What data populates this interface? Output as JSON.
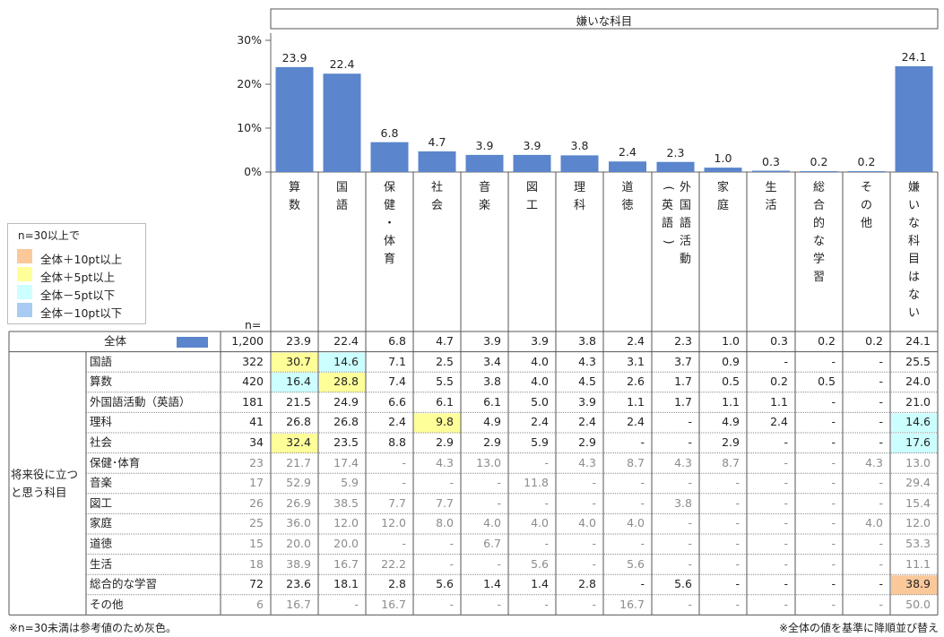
{
  "chart_data": {
    "type": "bar",
    "title": "嫌いな科目",
    "categories": [
      "算数",
      "国語",
      "保健・体育",
      "社会",
      "音楽",
      "図工",
      "理科",
      "道徳",
      "外国語活動（英語）",
      "家庭",
      "生活",
      "総合的な学習",
      "その他",
      "嫌いな科目はない"
    ],
    "header_labels": [
      "算数",
      "国語",
      "保健・体育",
      "社会",
      "音楽",
      "図工",
      "理科",
      "道徳",
      "外国語活動（英語）",
      "家庭",
      "生活",
      "総合的な学習",
      "その他",
      "嫌いな科目はない"
    ],
    "values": [
      23.9,
      22.4,
      6.8,
      4.7,
      3.9,
      3.9,
      3.8,
      2.4,
      2.3,
      1.0,
      0.3,
      0.2,
      0.2,
      24.1
    ],
    "value_labels": [
      "23.9",
      "22.4",
      "6.8",
      "4.7",
      "3.9",
      "3.9",
      "3.8",
      "2.4",
      "2.3",
      "1.0",
      "0.3",
      "0.2",
      "0.2",
      "24.1"
    ],
    "yticks": [
      "30%",
      "20%",
      "10%",
      "0%"
    ],
    "ylim": [
      0,
      30
    ],
    "bar_color": "#5b85cc",
    "n_label": "n=",
    "total_row": {
      "label": "全体",
      "n": "1,200",
      "values": [
        "23.9",
        "22.4",
        "6.8",
        "4.7",
        "3.9",
        "3.9",
        "3.8",
        "2.4",
        "2.3",
        "1.0",
        "0.3",
        "0.2",
        "0.2",
        "24.1"
      ]
    },
    "group_label": "将来役に立つと思う科目",
    "rows": [
      {
        "label": "国語",
        "n": "322",
        "gray": false,
        "values": [
          "30.7",
          "14.6",
          "7.1",
          "2.5",
          "3.4",
          "4.0",
          "4.3",
          "3.1",
          "3.7",
          "0.9",
          "-",
          "-",
          "-",
          "25.5"
        ],
        "hl": [
          "yellow",
          "cyan",
          "",
          "",
          "",
          "",
          "",
          "",
          "",
          "",
          "",
          "",
          "",
          ""
        ]
      },
      {
        "label": "算数",
        "n": "420",
        "gray": false,
        "values": [
          "16.4",
          "28.8",
          "7.4",
          "5.5",
          "3.8",
          "4.0",
          "4.5",
          "2.6",
          "1.7",
          "0.5",
          "0.2",
          "0.5",
          "-",
          "24.0"
        ],
        "hl": [
          "cyan",
          "yellow",
          "",
          "",
          "",
          "",
          "",
          "",
          "",
          "",
          "",
          "",
          "",
          ""
        ]
      },
      {
        "label": "外国語活動（英語）",
        "n": "181",
        "gray": false,
        "values": [
          "21.5",
          "24.9",
          "6.6",
          "6.1",
          "6.1",
          "5.0",
          "3.9",
          "1.1",
          "1.7",
          "1.1",
          "1.1",
          "-",
          "-",
          "21.0"
        ],
        "hl": [
          "",
          "",
          "",
          "",
          "",
          "",
          "",
          "",
          "",
          "",
          "",
          "",
          "",
          ""
        ]
      },
      {
        "label": "理科",
        "n": "41",
        "gray": false,
        "values": [
          "26.8",
          "26.8",
          "2.4",
          "9.8",
          "4.9",
          "2.4",
          "2.4",
          "2.4",
          "-",
          "4.9",
          "2.4",
          "-",
          "-",
          "14.6"
        ],
        "hl": [
          "",
          "",
          "",
          "yellow",
          "",
          "",
          "",
          "",
          "",
          "",
          "",
          "",
          "",
          "cyan"
        ]
      },
      {
        "label": "社会",
        "n": "34",
        "gray": false,
        "values": [
          "32.4",
          "23.5",
          "8.8",
          "2.9",
          "2.9",
          "5.9",
          "2.9",
          "-",
          "-",
          "2.9",
          "-",
          "-",
          "-",
          "17.6"
        ],
        "hl": [
          "yellow",
          "",
          "",
          "",
          "",
          "",
          "",
          "",
          "",
          "",
          "",
          "",
          "",
          "cyan"
        ]
      },
      {
        "label": "保健･体育",
        "n": "23",
        "gray": true,
        "values": [
          "21.7",
          "17.4",
          "-",
          "4.3",
          "13.0",
          "-",
          "4.3",
          "8.7",
          "4.3",
          "8.7",
          "-",
          "-",
          "4.3",
          "13.0"
        ],
        "hl": [
          "",
          "",
          "",
          "",
          "",
          "",
          "",
          "",
          "",
          "",
          "",
          "",
          "",
          ""
        ]
      },
      {
        "label": "音楽",
        "n": "17",
        "gray": true,
        "values": [
          "52.9",
          "5.9",
          "-",
          "-",
          "-",
          "11.8",
          "-",
          "-",
          "-",
          "-",
          "-",
          "-",
          "-",
          "29.4"
        ],
        "hl": [
          "",
          "",
          "",
          "",
          "",
          "",
          "",
          "",
          "",
          "",
          "",
          "",
          "",
          ""
        ]
      },
      {
        "label": "図工",
        "n": "26",
        "gray": true,
        "values": [
          "26.9",
          "38.5",
          "7.7",
          "7.7",
          "-",
          "-",
          "-",
          "-",
          "3.8",
          "-",
          "-",
          "-",
          "-",
          "15.4"
        ],
        "hl": [
          "",
          "",
          "",
          "",
          "",
          "",
          "",
          "",
          "",
          "",
          "",
          "",
          "",
          ""
        ]
      },
      {
        "label": "家庭",
        "n": "25",
        "gray": true,
        "values": [
          "36.0",
          "12.0",
          "12.0",
          "8.0",
          "4.0",
          "4.0",
          "4.0",
          "4.0",
          "-",
          "-",
          "-",
          "-",
          "4.0",
          "12.0"
        ],
        "hl": [
          "",
          "",
          "",
          "",
          "",
          "",
          "",
          "",
          "",
          "",
          "",
          "",
          "",
          ""
        ]
      },
      {
        "label": "道徳",
        "n": "15",
        "gray": true,
        "values": [
          "20.0",
          "20.0",
          "-",
          "-",
          "6.7",
          "-",
          "-",
          "-",
          "-",
          "-",
          "-",
          "-",
          "-",
          "53.3"
        ],
        "hl": [
          "",
          "",
          "",
          "",
          "",
          "",
          "",
          "",
          "",
          "",
          "",
          "",
          "",
          ""
        ]
      },
      {
        "label": "生活",
        "n": "18",
        "gray": true,
        "values": [
          "38.9",
          "16.7",
          "22.2",
          "-",
          "-",
          "5.6",
          "-",
          "5.6",
          "-",
          "-",
          "-",
          "-",
          "-",
          "11.1"
        ],
        "hl": [
          "",
          "",
          "",
          "",
          "",
          "",
          "",
          "",
          "",
          "",
          "",
          "",
          "",
          ""
        ]
      },
      {
        "label": "総合的な学習",
        "n": "72",
        "gray": false,
        "values": [
          "23.6",
          "18.1",
          "2.8",
          "5.6",
          "1.4",
          "1.4",
          "2.8",
          "-",
          "5.6",
          "-",
          "-",
          "-",
          "-",
          "38.9"
        ],
        "hl": [
          "",
          "",
          "",
          "",
          "",
          "",
          "",
          "",
          "",
          "",
          "",
          "",
          "",
          "orange"
        ]
      },
      {
        "label": "その他",
        "n": "6",
        "gray": true,
        "values": [
          "16.7",
          "-",
          "16.7",
          "-",
          "-",
          "-",
          "-",
          "16.7",
          "-",
          "-",
          "-",
          "-",
          "-",
          "50.0"
        ],
        "hl": [
          "",
          "",
          "",
          "",
          "",
          "",
          "",
          "",
          "",
          "",
          "",
          "",
          "",
          ""
        ]
      }
    ]
  },
  "legend": {
    "title": "n=30以上で",
    "items": [
      {
        "label": "全体＋10pt以上",
        "color": "#fbc89a"
      },
      {
        "label": "全体＋5pt以上",
        "color": "#ffff99"
      },
      {
        "label": "全体－5pt以下",
        "color": "#ccffff"
      },
      {
        "label": "全体－10pt以下",
        "color": "#a7cbf2"
      }
    ]
  },
  "highlight_colors": {
    "orange": "#fbc89a",
    "yellow": "#ffff99",
    "cyan": "#ccffff",
    "blue": "#a7cbf2"
  },
  "notes": {
    "left": "※n=30未満は参考値のため灰色。",
    "right": "※全体の値を基準に降順並び替え"
  }
}
